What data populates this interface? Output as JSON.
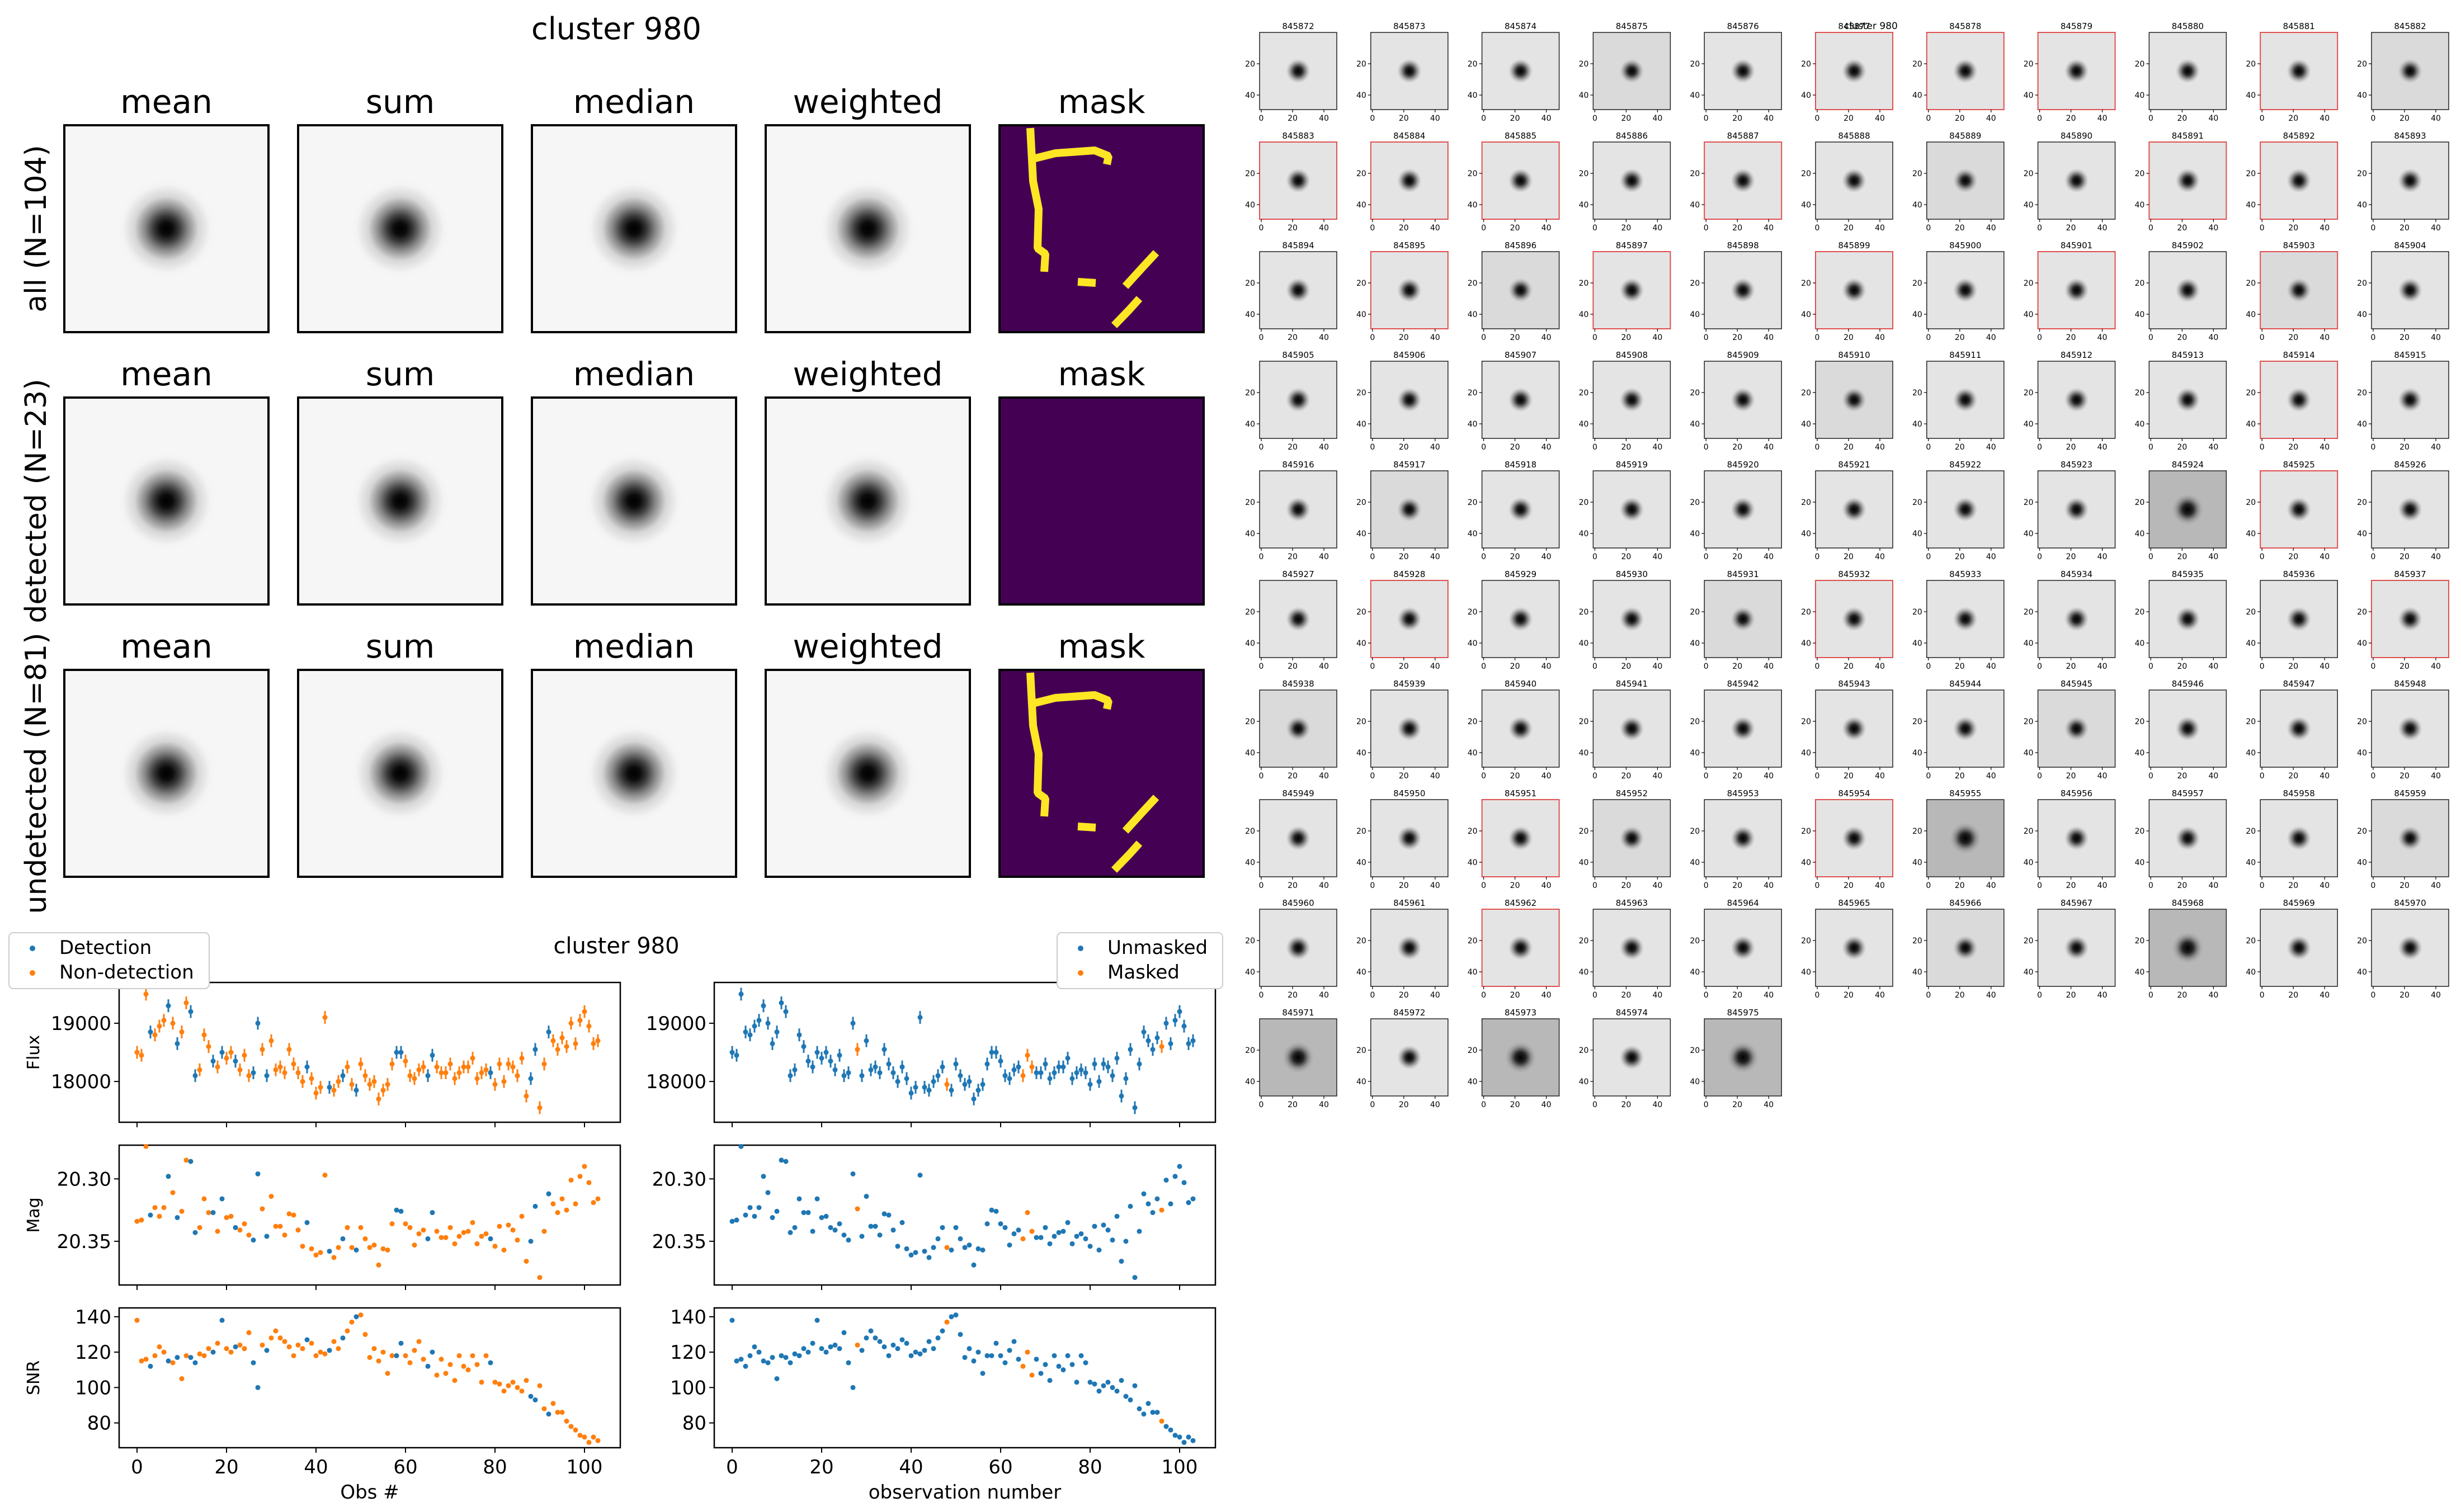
{
  "colors": {
    "detection": "#1f77b4",
    "non_detection": "#ff7f0e",
    "mask_bg": "#440154",
    "mask_fg": "#fde725",
    "flag_border": "#e05050"
  },
  "cutout_panel": {
    "title": "cluster 980",
    "columns": [
      "mean",
      "sum",
      "median",
      "weighted",
      "mask"
    ],
    "rows": [
      {
        "label": "all (N=104)",
        "mask": "streaks"
      },
      {
        "label": "detected (N=23)",
        "mask": "empty"
      },
      {
        "label": "undetected (N=81)",
        "mask": "streaks"
      }
    ]
  },
  "stamps_panel": {
    "title": "cluster 980",
    "tick_labels_x": [
      "0",
      "20",
      "40"
    ],
    "tick_labels_y": [
      "20",
      "40"
    ],
    "ids": [
      "845872",
      "845873",
      "845874",
      "845875",
      "845876",
      "845877",
      "845878",
      "845879",
      "845880",
      "845881",
      "845882",
      "845883",
      "845884",
      "845885",
      "845886",
      "845887",
      "845888",
      "845889",
      "845890",
      "845891",
      "845892",
      "845893",
      "845894",
      "845895",
      "845896",
      "845897",
      "845898",
      "845899",
      "845900",
      "845901",
      "845902",
      "845903",
      "845904",
      "845905",
      "845906",
      "845907",
      "845908",
      "845909",
      "845910",
      "845911",
      "845912",
      "845913",
      "845914",
      "845915",
      "845916",
      "845917",
      "845918",
      "845919",
      "845920",
      "845921",
      "845922",
      "845923",
      "845924",
      "845925",
      "845926",
      "845927",
      "845928",
      "845929",
      "845930",
      "845931",
      "845932",
      "845933",
      "845934",
      "845935",
      "845936",
      "845937",
      "845938",
      "845939",
      "845940",
      "845941",
      "845942",
      "845943",
      "845944",
      "845945",
      "845946",
      "845947",
      "845948",
      "845949",
      "845950",
      "845951",
      "845952",
      "845953",
      "845954",
      "845955",
      "845956",
      "845957",
      "845958",
      "845959",
      "845960",
      "845961",
      "845962",
      "845963",
      "845964",
      "845965",
      "845966",
      "845967",
      "845968",
      "845969",
      "845970",
      "845971",
      "845972",
      "845973",
      "845974",
      "845975"
    ],
    "flagged": [
      "845877",
      "845878",
      "845879",
      "845881",
      "845883",
      "845884",
      "845885",
      "845887",
      "845891",
      "845892",
      "845895",
      "845897",
      "845899",
      "845901",
      "845903",
      "845914",
      "845925",
      "845928",
      "845932",
      "845937",
      "845951",
      "845954",
      "845962"
    ],
    "dark_background": [
      "845924",
      "845955",
      "845968",
      "845971",
      "845973",
      "845975"
    ]
  },
  "chart_data": [
    {
      "type": "scatter",
      "title": "cluster 980",
      "panel": "left",
      "legend": {
        "position": "top-left",
        "entries": [
          "Detection",
          "Non-detection"
        ]
      },
      "xlabel": "Obs #",
      "xlim": [
        -4,
        108
      ],
      "xticks": [
        0,
        20,
        40,
        60,
        80,
        100
      ],
      "x": [
        0,
        1,
        2,
        3,
        4,
        5,
        6,
        7,
        8,
        9,
        10,
        11,
        12,
        13,
        14,
        15,
        16,
        17,
        18,
        19,
        20,
        21,
        22,
        23,
        24,
        25,
        26,
        27,
        28,
        29,
        30,
        31,
        32,
        33,
        34,
        35,
        36,
        37,
        38,
        39,
        40,
        41,
        42,
        43,
        44,
        45,
        46,
        47,
        48,
        49,
        50,
        51,
        52,
        53,
        54,
        55,
        56,
        57,
        58,
        59,
        60,
        61,
        62,
        63,
        64,
        65,
        66,
        67,
        68,
        69,
        70,
        71,
        72,
        73,
        74,
        75,
        76,
        77,
        78,
        79,
        80,
        81,
        82,
        83,
        84,
        85,
        86,
        87,
        88,
        89,
        90,
        91,
        92,
        93,
        94,
        95,
        96,
        97,
        98,
        99,
        100,
        101,
        102,
        103
      ],
      "detected": [
        3,
        7,
        9,
        12,
        13,
        17,
        19,
        22,
        26,
        27,
        29,
        38,
        43,
        46,
        49,
        58,
        59,
        65,
        66,
        79,
        88,
        89,
        92
      ],
      "subplots": [
        {
          "ylabel": "Flux",
          "ylim": [
            17300,
            19700
          ],
          "yticks": [
            18000,
            19000
          ],
          "errorbars": true,
          "values": [
            18500,
            18450,
            19500,
            18850,
            18800,
            18950,
            19050,
            19300,
            19000,
            18650,
            18850,
            19350,
            19200,
            18100,
            18200,
            18800,
            18600,
            18350,
            18250,
            18500,
            18400,
            18500,
            18350,
            18200,
            18450,
            18100,
            18150,
            19000,
            18550,
            18100,
            18700,
            18200,
            18250,
            18150,
            18550,
            18300,
            18150,
            18000,
            18250,
            18050,
            17800,
            17900,
            19100,
            17900,
            17850,
            18000,
            18100,
            18250,
            17950,
            17850,
            18300,
            18100,
            17950,
            18000,
            17700,
            17850,
            17950,
            18300,
            18500,
            18500,
            18350,
            18100,
            18050,
            18200,
            18250,
            18100,
            18450,
            18250,
            18150,
            18150,
            18300,
            18050,
            18150,
            18250,
            18250,
            18400,
            18050,
            18150,
            18200,
            18150,
            17950,
            18300,
            18000,
            18300,
            18250,
            18100,
            18400,
            17750,
            18050,
            18550,
            17550,
            18300,
            18850,
            18700,
            18550,
            18750,
            18600,
            19000,
            18650,
            19050,
            19200,
            18950,
            18650,
            18700
          ]
        },
        {
          "ylabel": "Mag",
          "ylim": [
            20.273,
            20.385
          ],
          "invert": true,
          "yticks": [
            20.3,
            20.35
          ],
          "ytick_labels": [
            "20.30",
            "20.35"
          ],
          "values": [
            20.334,
            20.333,
            20.274,
            20.329,
            20.323,
            20.33,
            20.323,
            20.298,
            20.311,
            20.331,
            20.326,
            20.285,
            20.286,
            20.343,
            20.339,
            20.316,
            20.327,
            20.327,
            20.342,
            20.316,
            20.331,
            20.33,
            20.339,
            20.341,
            20.336,
            20.345,
            20.349,
            20.296,
            20.324,
            20.346,
            20.314,
            20.338,
            20.338,
            20.345,
            20.328,
            20.329,
            20.341,
            20.354,
            20.335,
            20.356,
            20.361,
            20.359,
            20.297,
            20.358,
            20.363,
            20.355,
            20.348,
            20.339,
            20.355,
            20.357,
            20.339,
            20.348,
            20.355,
            20.353,
            20.369,
            20.356,
            20.357,
            20.336,
            20.325,
            20.326,
            20.336,
            20.339,
            20.353,
            20.344,
            20.341,
            20.348,
            20.327,
            20.342,
            20.347,
            20.347,
            20.339,
            20.352,
            20.346,
            20.343,
            20.342,
            20.335,
            20.352,
            20.346,
            20.344,
            20.348,
            20.354,
            20.338,
            20.357,
            20.337,
            20.341,
            20.349,
            20.33,
            20.366,
            20.35,
            20.322,
            20.379,
            20.342,
            20.312,
            20.32,
            20.327,
            20.316,
            20.325,
            20.301,
            20.32,
            20.298,
            20.29,
            20.303,
            20.319,
            20.316
          ]
        },
        {
          "ylabel": "SNR",
          "ylim": [
            66,
            145
          ],
          "yticks": [
            80,
            100,
            120,
            140
          ],
          "values": [
            138,
            115,
            116,
            112,
            118,
            123,
            120,
            115,
            114,
            117,
            105,
            118,
            117,
            114,
            119,
            118,
            122,
            120,
            125,
            138,
            122,
            120,
            123,
            124,
            122,
            131,
            114,
            100,
            124,
            121,
            128,
            132,
            128,
            126,
            123,
            118,
            124,
            122,
            127,
            125,
            118,
            120,
            119,
            121,
            126,
            122,
            128,
            132,
            137,
            140,
            141,
            130,
            117,
            122,
            115,
            120,
            108,
            118,
            118,
            125,
            118,
            114,
            121,
            126,
            116,
            112,
            120,
            107,
            116,
            108,
            113,
            104,
            118,
            112,
            110,
            118,
            113,
            103,
            118,
            114,
            103,
            102,
            98,
            101,
            103,
            100,
            98,
            104,
            95,
            93,
            101,
            88,
            85,
            91,
            86,
            86,
            81,
            78,
            76,
            73,
            72,
            69,
            72,
            70
          ]
        }
      ]
    },
    {
      "type": "scatter",
      "panel": "right",
      "legend": {
        "position": "top-right",
        "entries": [
          "Unmasked",
          "Masked"
        ]
      },
      "xlabel": "observation number",
      "masked": [
        28,
        48,
        65,
        66,
        67,
        96
      ],
      "note_shared": "same x and y values as the left panel, colored by mask status"
    }
  ]
}
